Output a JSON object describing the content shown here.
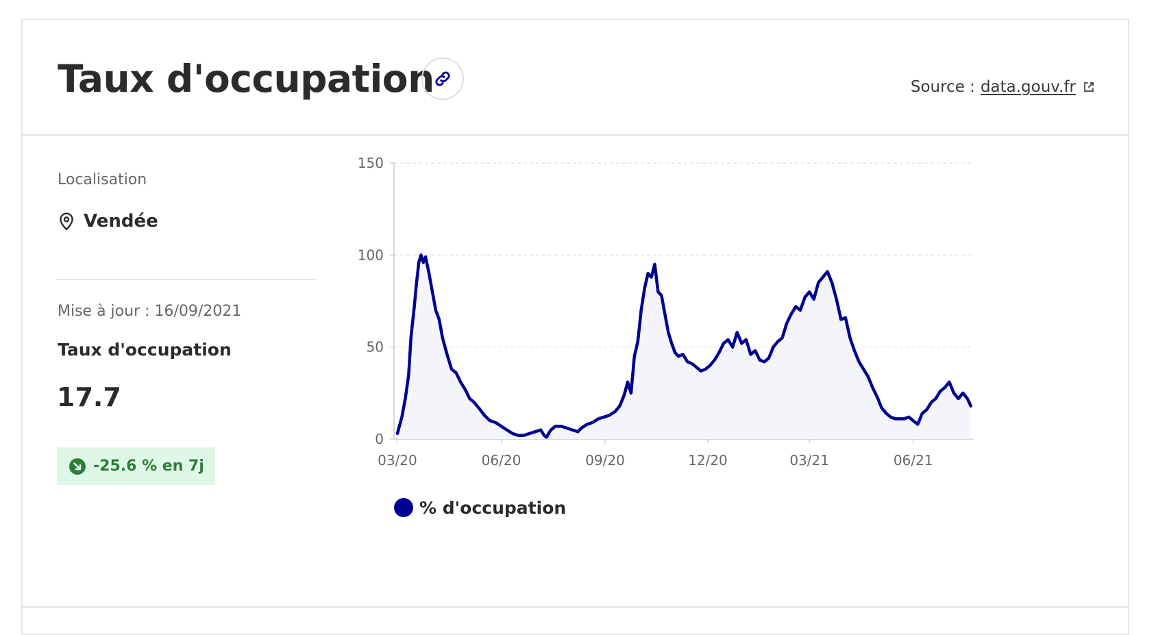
{
  "header": {
    "title": "Taux d'occupation",
    "source_prefix": "Source :",
    "source_link": "data.gouv.fr"
  },
  "sidebar": {
    "location_label": "Localisation",
    "location_value": "Vendée",
    "updated": "Mise à jour : 16/09/2021",
    "metric_label": "Taux d'occupation",
    "metric_value": "17.7",
    "trend": "-25.6 % en 7j"
  },
  "icons": {
    "link": "link-icon",
    "external": "external-link-icon",
    "location": "map-pin-icon",
    "trend": "arrow-down-right-icon"
  },
  "colors": {
    "series": "#000091",
    "area_fill": "#f4f4fb",
    "badge_bg": "#dff7e6",
    "badge_text": "#2f7d3b"
  },
  "chart_data": {
    "type": "area",
    "title": "",
    "xlabel": "",
    "ylabel": "",
    "ylim": [
      0,
      150
    ],
    "yticks": [
      "0",
      "50",
      "100",
      "150"
    ],
    "xticks": [
      "03/20",
      "06/20",
      "09/20",
      "12/20",
      "03/21",
      "06/21"
    ],
    "grid": true,
    "legend_position": "bottom",
    "series": [
      {
        "name": "% d'occupation",
        "color": "#000091",
        "points": [
          [
            "2020-03-18",
            3
          ],
          [
            "2020-03-22",
            12
          ],
          [
            "2020-03-25",
            22
          ],
          [
            "2020-03-28",
            35
          ],
          [
            "2020-03-30",
            55
          ],
          [
            "2020-04-02",
            72
          ],
          [
            "2020-04-04",
            85
          ],
          [
            "2020-04-06",
            96
          ],
          [
            "2020-04-08",
            100
          ],
          [
            "2020-04-10",
            96
          ],
          [
            "2020-04-12",
            99
          ],
          [
            "2020-04-15",
            90
          ],
          [
            "2020-04-18",
            80
          ],
          [
            "2020-04-21",
            70
          ],
          [
            "2020-04-24",
            65
          ],
          [
            "2020-04-27",
            55
          ],
          [
            "2020-05-01",
            46
          ],
          [
            "2020-05-05",
            38
          ],
          [
            "2020-05-09",
            36
          ],
          [
            "2020-05-13",
            31
          ],
          [
            "2020-05-17",
            27
          ],
          [
            "2020-05-21",
            22
          ],
          [
            "2020-05-25",
            20
          ],
          [
            "2020-05-29",
            17
          ],
          [
            "2020-06-03",
            13
          ],
          [
            "2020-06-08",
            10
          ],
          [
            "2020-06-13",
            9
          ],
          [
            "2020-06-18",
            7
          ],
          [
            "2020-06-23",
            5
          ],
          [
            "2020-06-28",
            3
          ],
          [
            "2020-07-03",
            2
          ],
          [
            "2020-07-08",
            2
          ],
          [
            "2020-07-13",
            3
          ],
          [
            "2020-07-18",
            4
          ],
          [
            "2020-07-23",
            5
          ],
          [
            "2020-07-26",
            2
          ],
          [
            "2020-07-28",
            1
          ],
          [
            "2020-08-01",
            5
          ],
          [
            "2020-08-05",
            7
          ],
          [
            "2020-08-10",
            7
          ],
          [
            "2020-08-15",
            6
          ],
          [
            "2020-08-20",
            5
          ],
          [
            "2020-08-25",
            4
          ],
          [
            "2020-08-28",
            6
          ],
          [
            "2020-09-02",
            8
          ],
          [
            "2020-09-07",
            9
          ],
          [
            "2020-09-12",
            11
          ],
          [
            "2020-09-17",
            12
          ],
          [
            "2020-09-22",
            13
          ],
          [
            "2020-09-27",
            15
          ],
          [
            "2020-10-01",
            18
          ],
          [
            "2020-10-05",
            24
          ],
          [
            "2020-10-08",
            31
          ],
          [
            "2020-10-11",
            25
          ],
          [
            "2020-10-14",
            45
          ],
          [
            "2020-10-17",
            53
          ],
          [
            "2020-10-20",
            70
          ],
          [
            "2020-10-23",
            82
          ],
          [
            "2020-10-26",
            90
          ],
          [
            "2020-10-29",
            88
          ],
          [
            "2020-11-01",
            95
          ],
          [
            "2020-11-04",
            80
          ],
          [
            "2020-11-07",
            78
          ],
          [
            "2020-11-10",
            68
          ],
          [
            "2020-11-13",
            58
          ],
          [
            "2020-11-16",
            52
          ],
          [
            "2020-11-19",
            47
          ],
          [
            "2020-11-22",
            45
          ],
          [
            "2020-11-26",
            46
          ],
          [
            "2020-11-30",
            42
          ],
          [
            "2020-12-04",
            41
          ],
          [
            "2020-12-08",
            39
          ],
          [
            "2020-12-12",
            37
          ],
          [
            "2020-12-16",
            38
          ],
          [
            "2020-12-20",
            40
          ],
          [
            "2020-12-24",
            43
          ],
          [
            "2020-12-28",
            47
          ],
          [
            "2021-01-01",
            52
          ],
          [
            "2021-01-05",
            54
          ],
          [
            "2021-01-09",
            50
          ],
          [
            "2021-01-13",
            58
          ],
          [
            "2021-01-17",
            52
          ],
          [
            "2021-01-21",
            54
          ],
          [
            "2021-01-25",
            46
          ],
          [
            "2021-01-29",
            48
          ],
          [
            "2021-02-02",
            43
          ],
          [
            "2021-02-06",
            42
          ],
          [
            "2021-02-10",
            44
          ],
          [
            "2021-02-14",
            50
          ],
          [
            "2021-02-18",
            53
          ],
          [
            "2021-02-22",
            55
          ],
          [
            "2021-02-26",
            63
          ],
          [
            "2021-03-02",
            68
          ],
          [
            "2021-03-06",
            72
          ],
          [
            "2021-03-10",
            70
          ],
          [
            "2021-03-14",
            77
          ],
          [
            "2021-03-18",
            80
          ],
          [
            "2021-03-22",
            76
          ],
          [
            "2021-03-26",
            85
          ],
          [
            "2021-03-30",
            88
          ],
          [
            "2021-04-03",
            91
          ],
          [
            "2021-04-07",
            85
          ],
          [
            "2021-04-11",
            76
          ],
          [
            "2021-04-15",
            65
          ],
          [
            "2021-04-19",
            66
          ],
          [
            "2021-04-23",
            55
          ],
          [
            "2021-04-27",
            48
          ],
          [
            "2021-05-01",
            42
          ],
          [
            "2021-05-05",
            38
          ],
          [
            "2021-05-09",
            34
          ],
          [
            "2021-05-13",
            28
          ],
          [
            "2021-05-17",
            23
          ],
          [
            "2021-05-21",
            17
          ],
          [
            "2021-05-25",
            14
          ],
          [
            "2021-05-29",
            12
          ],
          [
            "2021-06-02",
            11
          ],
          [
            "2021-06-06",
            11
          ],
          [
            "2021-06-10",
            11
          ],
          [
            "2021-06-14",
            12
          ],
          [
            "2021-06-18",
            10
          ],
          [
            "2021-06-22",
            8
          ],
          [
            "2021-06-26",
            14
          ],
          [
            "2021-06-30",
            16
          ],
          [
            "2021-07-04",
            20
          ],
          [
            "2021-07-08",
            22
          ],
          [
            "2021-07-12",
            26
          ],
          [
            "2021-07-16",
            28
          ],
          [
            "2021-07-20",
            31
          ],
          [
            "2021-07-24",
            25
          ],
          [
            "2021-07-28",
            22
          ],
          [
            "2021-08-01",
            25
          ],
          [
            "2021-08-05",
            22
          ],
          [
            "2021-08-08",
            18
          ]
        ]
      }
    ]
  }
}
